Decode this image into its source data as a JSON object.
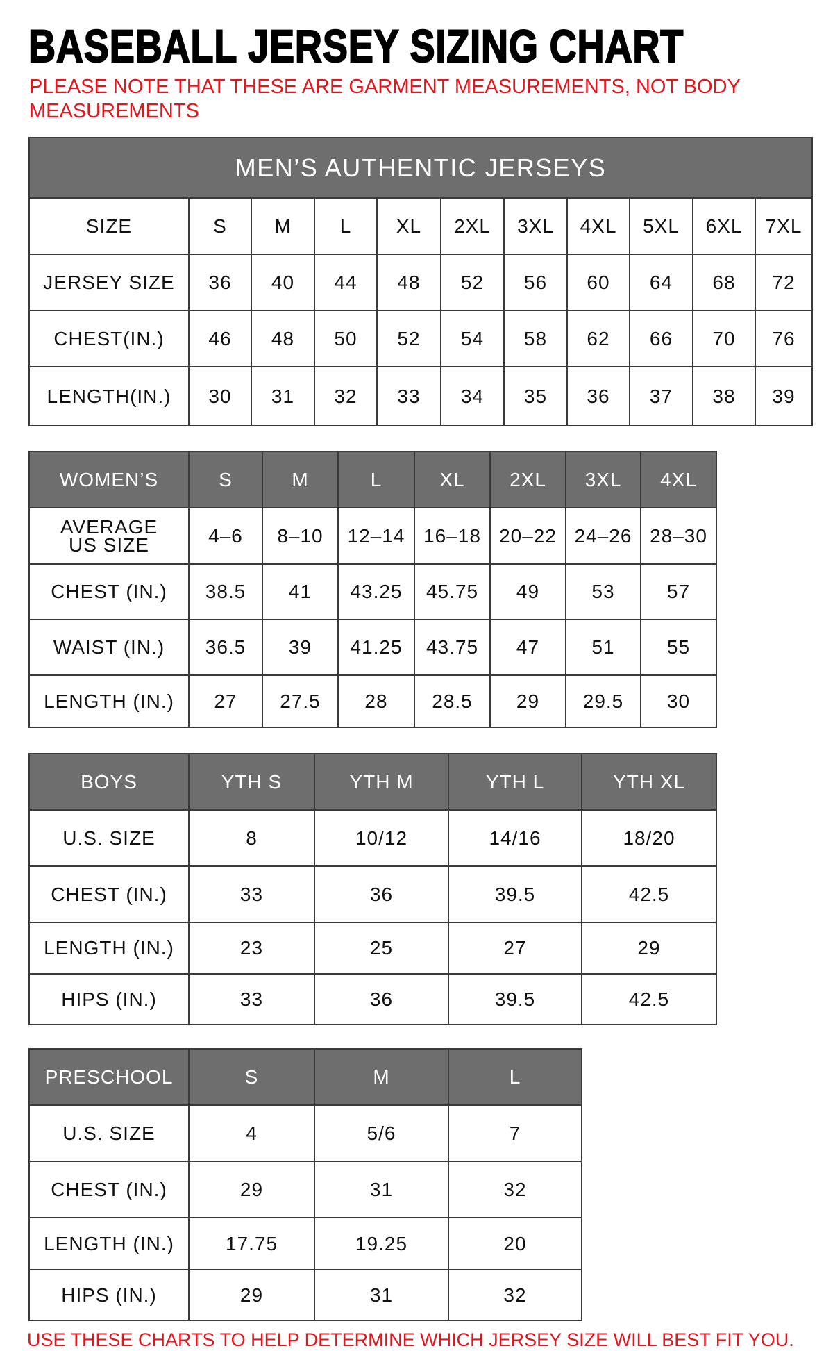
{
  "title": "BASEBALL JERSEY SIZING CHART",
  "note_lines": [
    "PLEASE NOTE THAT THESE ARE GARMENT MEASUREMENTS, NOT BODY",
    "MEASUREMENTS"
  ],
  "footer": "USE THESE CHARTS TO HELP DETERMINE WHICH JERSEY SIZE WILL BEST FIT YOU.",
  "colors": {
    "header_bg": "#6e6e6e",
    "note_red": "#e8141c"
  },
  "tables": [
    {
      "id": "mens",
      "caption": "MEN’S AUTHENTIC JERSEYS",
      "header_in_gray": false,
      "header": [
        "SIZE",
        "S",
        "M",
        "L",
        "XL",
        "2XL",
        "3XL",
        "4XL",
        "5XL",
        "6XL",
        "7XL"
      ],
      "rows": [
        [
          "JERSEY SIZE",
          "36",
          "40",
          "44",
          "48",
          "52",
          "56",
          "60",
          "64",
          "68",
          "72"
        ],
        [
          "CHEST(IN.)",
          "46",
          "48",
          "50",
          "52",
          "54",
          "58",
          "62",
          "66",
          "70",
          "76"
        ],
        [
          "LENGTH(IN.)",
          "30",
          "31",
          "32",
          "33",
          "34",
          "35",
          "36",
          "37",
          "38",
          "39"
        ]
      ]
    },
    {
      "id": "womens",
      "header_in_gray": true,
      "header": [
        "WOMEN’S",
        "S",
        "M",
        "L",
        "XL",
        "2XL",
        "3XL",
        "4XL"
      ],
      "rows": [
        [
          "AVERAGE\nUS SIZE",
          "4–6",
          "8–10",
          "12–14",
          "16–18",
          "20–22",
          "24–26",
          "28–30"
        ],
        [
          "CHEST (IN.)",
          "38.5",
          "41",
          "43.25",
          "45.75",
          "49",
          "53",
          "57"
        ],
        [
          "WAIST (IN.)",
          "36.5",
          "39",
          "41.25",
          "43.75",
          "47",
          "51",
          "55"
        ],
        [
          "LENGTH (IN.)",
          "27",
          "27.5",
          "28",
          "28.5",
          "29",
          "29.5",
          "30"
        ]
      ]
    },
    {
      "id": "boys",
      "header_in_gray": true,
      "header": [
        "BOYS",
        "YTH S",
        "YTH M",
        "YTH L",
        "YTH XL"
      ],
      "rows": [
        [
          "U.S. SIZE",
          "8",
          "10/12",
          "14/16",
          "18/20"
        ],
        [
          "CHEST (IN.)",
          "33",
          "36",
          "39.5",
          "42.5"
        ],
        [
          "LENGTH (IN.)",
          "23",
          "25",
          "27",
          "29"
        ],
        [
          "HIPS (IN.)",
          "33",
          "36",
          "39.5",
          "42.5"
        ]
      ]
    },
    {
      "id": "preschool",
      "header_in_gray": true,
      "header": [
        "PRESCHOOL",
        "S",
        "M",
        "L"
      ],
      "rows": [
        [
          "U.S. SIZE",
          "4",
          "5/6",
          "7"
        ],
        [
          "CHEST (IN.)",
          "29",
          "31",
          "32"
        ],
        [
          "LENGTH (IN.)",
          "17.75",
          "19.25",
          "20"
        ],
        [
          "HIPS (IN.)",
          "29",
          "31",
          "32"
        ]
      ]
    }
  ]
}
